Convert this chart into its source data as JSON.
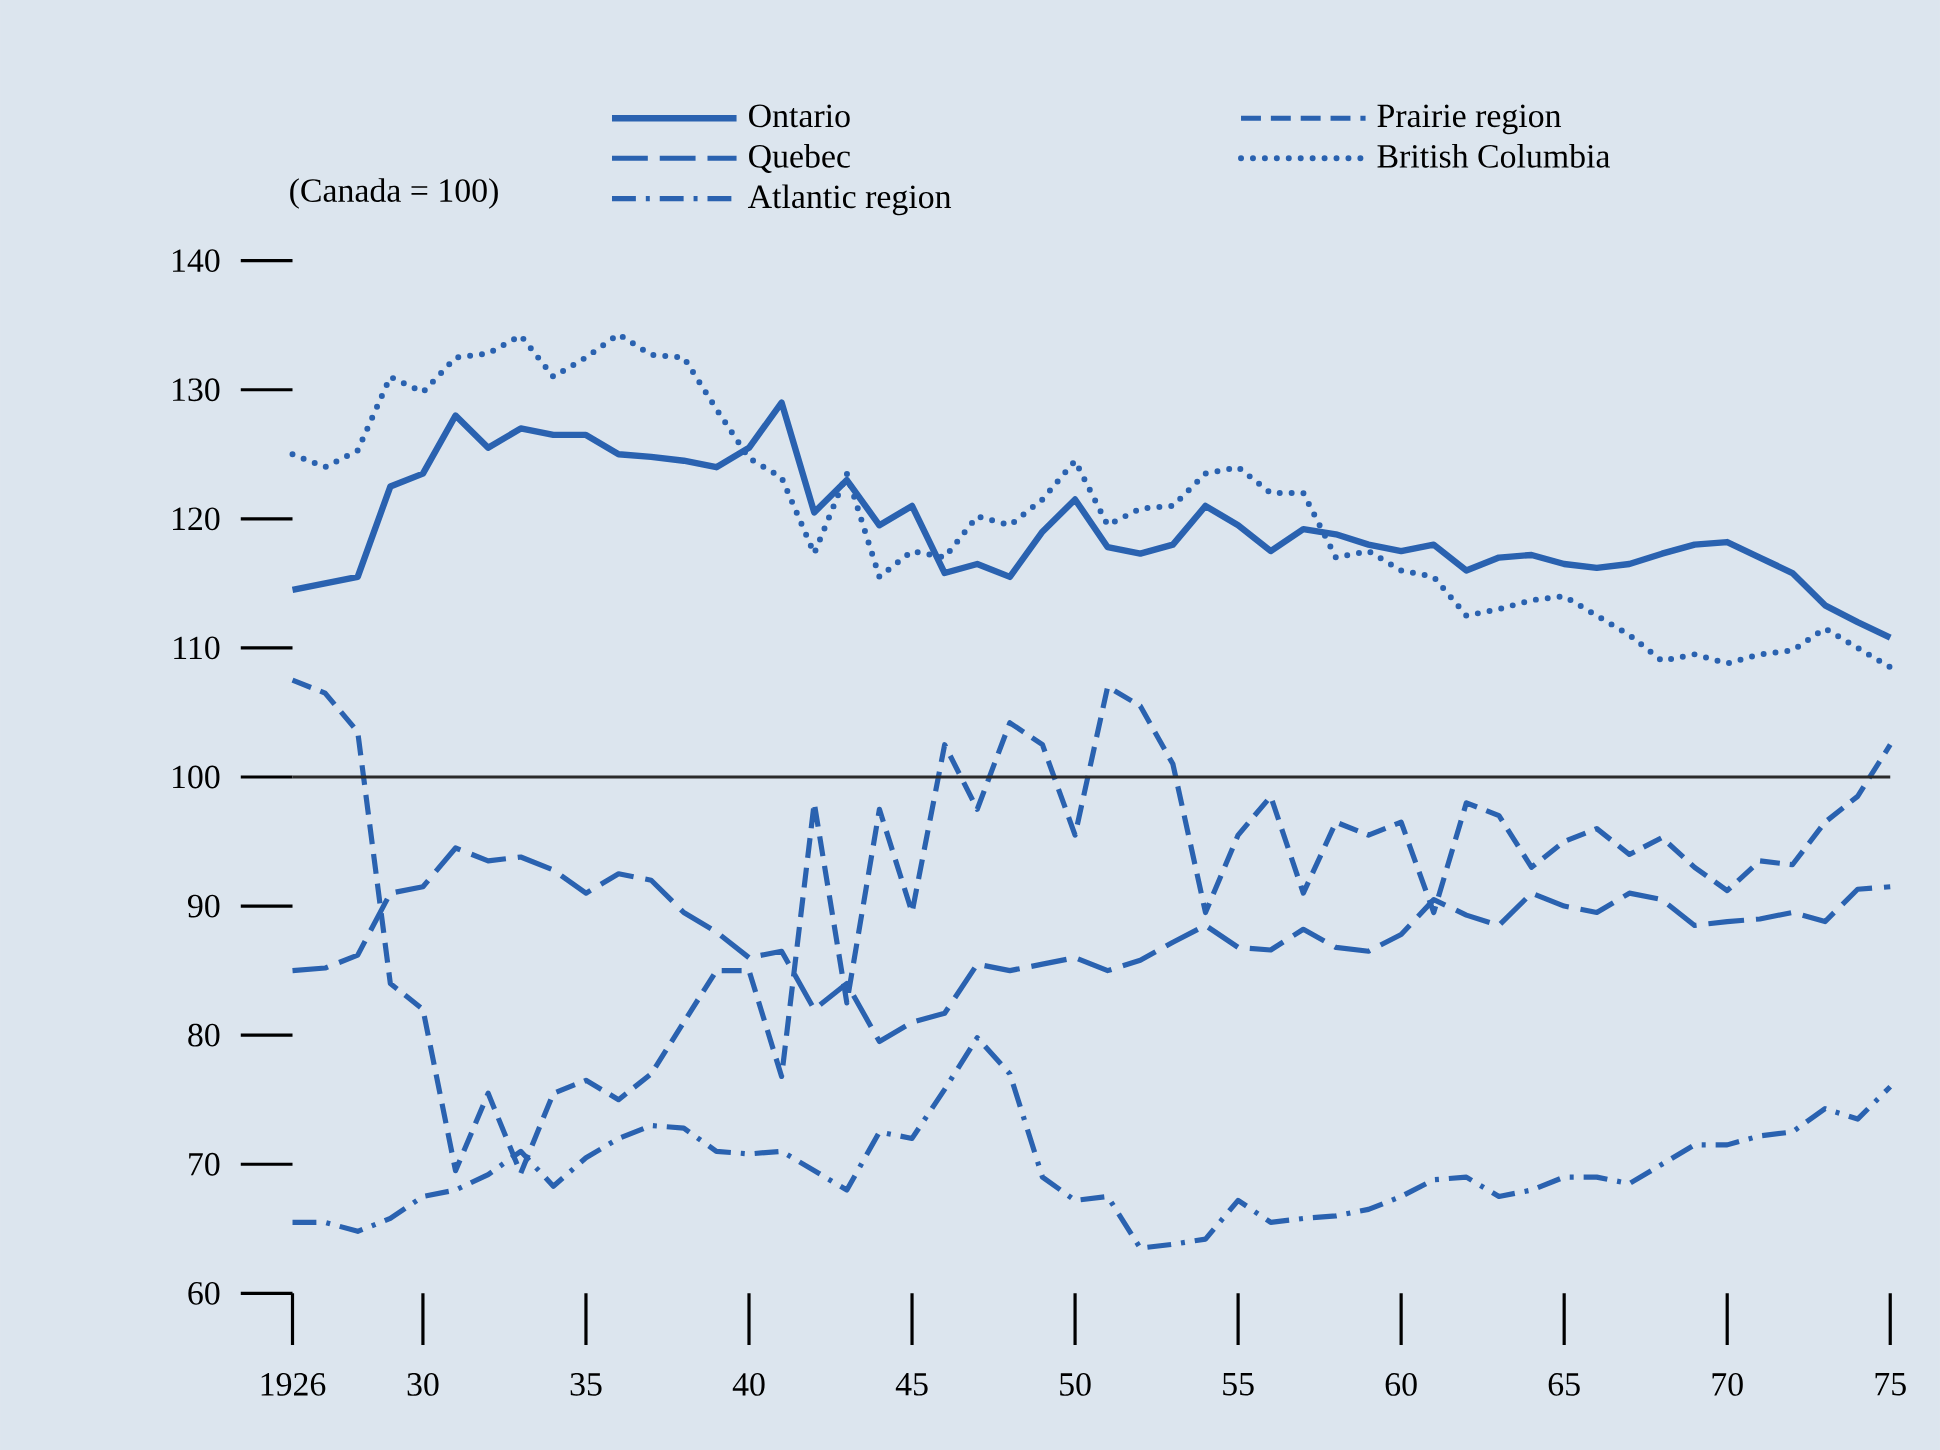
{
  "chart_data": {
    "type": "line",
    "ylabel": "(Canada = 100)",
    "x": [
      1926,
      1927,
      1928,
      1929,
      1930,
      1931,
      1932,
      1933,
      1934,
      1935,
      1936,
      1937,
      1938,
      1939,
      1940,
      1941,
      1942,
      1943,
      1944,
      1945,
      1946,
      1947,
      1948,
      1949,
      1950,
      1951,
      1952,
      1953,
      1954,
      1955,
      1956,
      1957,
      1958,
      1959,
      1960,
      1961,
      1962,
      1963,
      1964,
      1965,
      1966,
      1967,
      1968,
      1969,
      1970,
      1971,
      1972,
      1973,
      1974,
      1975
    ],
    "xlim": [
      1926,
      1975
    ],
    "xticks": [
      1926,
      {
        "value": 1930,
        "label": "30"
      },
      {
        "value": 1935,
        "label": "35"
      },
      {
        "value": 1940,
        "label": "40"
      },
      {
        "value": 1945,
        "label": "45"
      },
      {
        "value": 1950,
        "label": "50"
      },
      {
        "value": 1955,
        "label": "55"
      },
      {
        "value": 1960,
        "label": "60"
      },
      {
        "value": 1965,
        "label": "65"
      },
      {
        "value": 1970,
        "label": "70"
      },
      {
        "value": 1975,
        "label": "75"
      }
    ],
    "ylim": [
      60,
      140
    ],
    "yticks": [
      60,
      70,
      80,
      90,
      100,
      110,
      120,
      130,
      140
    ],
    "legend": "top",
    "grid": false,
    "ref_lines": [
      {
        "axis": "y",
        "value": 100,
        "color": "#2b2b2b"
      }
    ],
    "series": [
      {
        "name": "Ontario",
        "color": "#2a62b0",
        "line_style": "solid",
        "values": [
          114.5,
          115,
          115.5,
          122.5,
          123.5,
          128,
          125.5,
          127,
          126.5,
          126.5,
          125,
          124.8,
          124.5,
          124,
          125.5,
          129,
          120.5,
          123,
          119.5,
          121,
          115.8,
          116.5,
          115.5,
          119,
          121.5,
          117.8,
          117.3,
          118,
          121,
          119.5,
          117.5,
          119.2,
          118.8,
          118,
          117.5,
          118,
          116,
          117,
          117.2,
          116.5,
          116.2,
          116.5,
          117.3,
          118,
          118.2,
          117,
          115.8,
          113.3,
          112,
          110.8
        ]
      },
      {
        "name": "Quebec",
        "color": "#2a62b0",
        "line_style": "long dashed",
        "values": [
          85,
          85.2,
          86.2,
          91,
          91.5,
          94.5,
          93.5,
          93.8,
          92.8,
          91,
          92.5,
          92,
          89.5,
          88,
          86,
          86.5,
          82,
          84,
          79.5,
          81,
          81.7,
          85.5,
          85,
          85.5,
          86,
          85,
          85.8,
          87.2,
          88.5,
          86.8,
          86.6,
          88.2,
          86.8,
          86.5,
          87.8,
          90.5,
          89.3,
          88.5,
          91,
          90,
          89.5,
          91,
          90.5,
          88.5,
          88.8,
          89,
          89.5,
          88.8,
          91.3,
          91.5
        ]
      },
      {
        "name": "Atlantic region",
        "color": "#2a62b0",
        "line_style": "dash dot",
        "values": [
          65.5,
          65.5,
          64.8,
          65.8,
          67.5,
          68,
          69.2,
          71,
          68.3,
          70.5,
          72,
          73,
          72.8,
          71,
          70.8,
          71,
          69.5,
          68,
          72.5,
          72,
          75.8,
          79.8,
          77,
          69,
          67.2,
          67.5,
          63.5,
          63.8,
          64.2,
          67.2,
          65.5,
          65.8,
          66,
          66.5,
          67.5,
          68.8,
          69,
          67.5,
          68,
          69,
          69,
          68.5,
          70,
          71.5,
          71.5,
          72.2,
          72.5,
          74.3,
          73.5,
          76
        ]
      },
      {
        "name": "Prairie region",
        "color": "#2a62b0",
        "line_style": "dashed",
        "values": [
          107.5,
          106.5,
          103.5,
          84,
          82,
          69.5,
          75.5,
          69.3,
          75.5,
          76.5,
          75,
          77,
          81,
          85,
          85,
          76.8,
          98,
          82.5,
          97.5,
          89.5,
          102.5,
          97.5,
          104.2,
          102.5,
          95.5,
          107,
          105.5,
          101,
          89.5,
          95.5,
          98.5,
          91,
          96.5,
          95.5,
          96.5,
          89.5,
          98,
          97,
          93,
          95,
          96,
          94,
          95.3,
          93,
          91.2,
          93.5,
          93.2,
          96.5,
          98.5,
          102.5
        ]
      },
      {
        "name": "British Columbia",
        "color": "#2a62b0",
        "line_style": "dotted",
        "values": [
          125,
          124,
          125.3,
          131,
          129.8,
          132.5,
          132.8,
          134.2,
          131,
          132.5,
          134.3,
          132.7,
          132.5,
          128.5,
          124.7,
          123.2,
          117.3,
          123.5,
          115.5,
          117.5,
          117,
          120.2,
          119.5,
          121.5,
          124.5,
          119.5,
          120.8,
          121,
          123.5,
          124,
          122,
          122,
          117,
          117.5,
          116,
          115.5,
          112.5,
          113,
          113.7,
          114,
          112.5,
          111,
          109,
          109.5,
          108.8,
          109.5,
          109.8,
          111.5,
          110,
          108.5
        ]
      }
    ]
  }
}
